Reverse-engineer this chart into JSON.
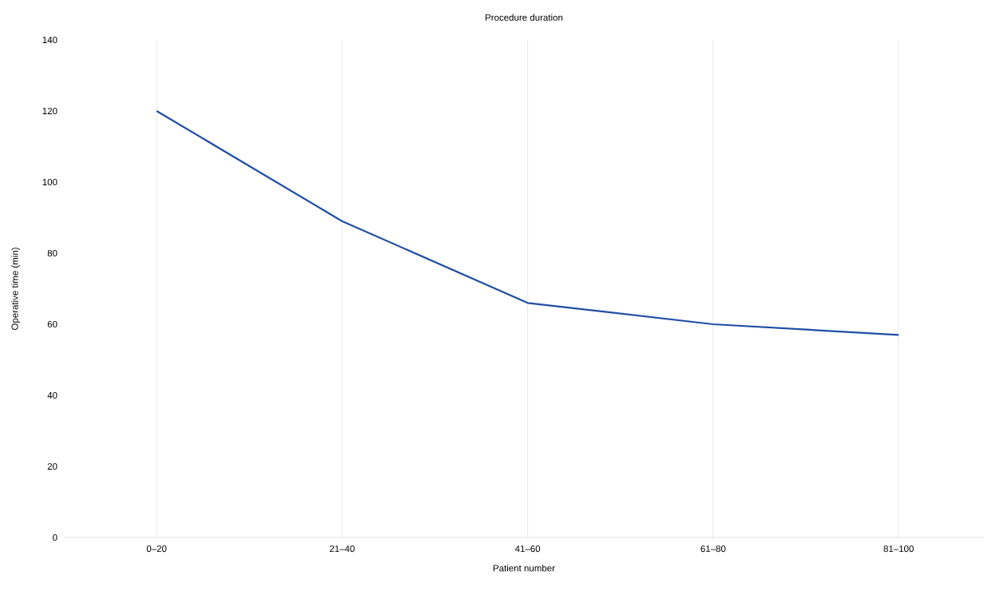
{
  "chart_data": {
    "type": "line",
    "title": "Procedure duration",
    "xlabel": "Patient number",
    "ylabel": "Operative time (min)",
    "categories": [
      "0–20",
      "21–40",
      "41–60",
      "61–80",
      "81–100"
    ],
    "series": [
      {
        "color": "#1f4ea3",
        "values": [
          120,
          89,
          66,
          60,
          57
        ]
      }
    ],
    "ylim": [
      0,
      140
    ],
    "yticks": [
      0,
      20,
      40,
      60,
      80,
      100,
      120,
      140
    ],
    "grid": "x",
    "marker": "none",
    "line_style": "solid"
  }
}
